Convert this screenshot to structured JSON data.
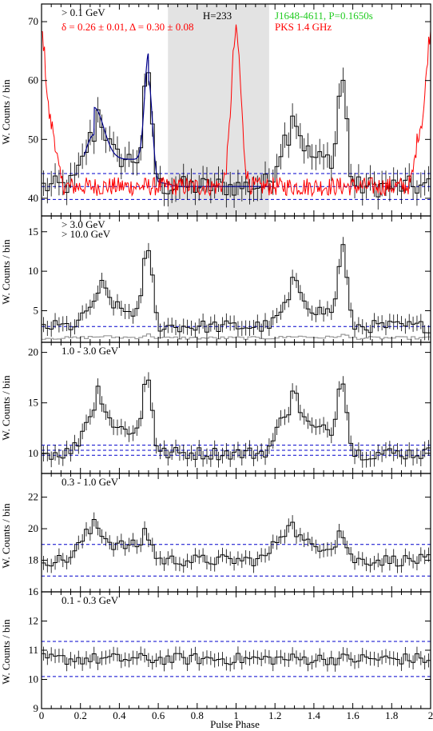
{
  "figure": {
    "x_axis_label": "Pulse Phase",
    "y_axis_label": "W. Counts / bin",
    "x_ticks": [
      "0",
      "0.2",
      "0.4",
      "0.6",
      "0.8",
      "1",
      "1.2",
      "1.4",
      "1.6",
      "1.8",
      "2"
    ]
  },
  "annotations": {
    "htest": "H=233",
    "pulsar": "J1648-4611, P=0.1650s",
    "radio": "PKS 1.4 GHz",
    "fit_params": "δ = 0.26 ± 0.01, Δ = 0.30 ± 0.08",
    "pulsar_color": "#22cc22",
    "radio_color": "#ff0000",
    "fit_color": "#ff0000",
    "offpulse_shade": "#e3e3e3",
    "model_color": "#00008b",
    "background_color": "#0000cc",
    "high_energy_color": "#999999"
  },
  "chart_data": [
    {
      "type": "line",
      "name": "> 0.1 GeV",
      "ylim": [
        37,
        73
      ],
      "yticks": [
        40,
        50,
        60,
        70
      ],
      "x": [
        0,
        2
      ],
      "profile_peaks": [
        {
          "phase": 0.27,
          "value": 53
        },
        {
          "phase": 0.55,
          "value": 60
        }
      ],
      "baseline": 42,
      "background_levels": [
        39.8,
        42,
        44.2
      ],
      "offpulse_range": [
        0.65,
        1.17
      ],
      "radio_peak": {
        "phase": 1.0,
        "value": 68
      }
    },
    {
      "type": "line",
      "name": "> 3.0 GeV",
      "secondary_name": "> 10.0 GeV",
      "ylim": [
        1,
        17
      ],
      "yticks": [
        5,
        10,
        15
      ],
      "x": [
        0,
        2
      ],
      "profile_peaks": [
        {
          "phase": 0.29,
          "value": 7.5
        },
        {
          "phase": 0.55,
          "value": 13
        }
      ],
      "baseline": 3,
      "background_levels": [
        3
      ]
    },
    {
      "type": "line",
      "name": "1.0 - 3.0 GeV",
      "ylim": [
        8,
        21
      ],
      "yticks": [
        10,
        15,
        20
      ],
      "x": [
        0,
        2
      ],
      "profile_peaks": [
        {
          "phase": 0.27,
          "value": 15.5
        },
        {
          "phase": 0.55,
          "value": 17.5
        }
      ],
      "baseline": 10,
      "background_levels": [
        9.8,
        10.3,
        10.8
      ]
    },
    {
      "type": "line",
      "name": "0.3 - 1.0 GeV",
      "ylim": [
        16,
        23.5
      ],
      "yticks": [
        16,
        18,
        20,
        22
      ],
      "x": [
        0,
        2
      ],
      "profile_peaks": [
        {
          "phase": 0.25,
          "value": 20.2
        },
        {
          "phase": 0.55,
          "value": 19.5
        }
      ],
      "baseline": 18,
      "background_levels": [
        17,
        19
      ]
    },
    {
      "type": "line",
      "name": "0.1 - 0.3 GeV",
      "ylim": [
        9,
        13
      ],
      "yticks": [
        9,
        10,
        11,
        12
      ],
      "x": [
        0,
        2
      ],
      "profile_peaks": [],
      "baseline": 10.7,
      "background_levels": [
        10.1,
        11.3
      ]
    }
  ]
}
